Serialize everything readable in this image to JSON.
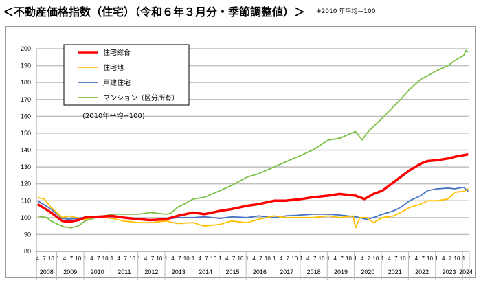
{
  "title": "＜不動産価格指数（住宅）（令和６年３月分・季節調整値）＞",
  "note": "※2010 年平均＝100",
  "chart_data": {
    "type": "line",
    "annotation": "(2010年平均=100)",
    "ylim": [
      80,
      200
    ],
    "yticks": [
      80,
      90,
      100,
      110,
      120,
      130,
      140,
      150,
      160,
      170,
      180,
      190,
      200
    ],
    "grid": true,
    "legend_position": "top-left",
    "x_range": [
      "2008-04",
      "2024-03"
    ],
    "month_tick_labels": [
      "4",
      "7",
      "10",
      "1"
    ],
    "year_labels": [
      "2008",
      "2009",
      "2010",
      "2011",
      "2012",
      "2013",
      "2014",
      "2015",
      "2016",
      "2017",
      "2018",
      "2019",
      "2020",
      "2021",
      "2022",
      "2023",
      "2024"
    ],
    "series": [
      {
        "name": "住宅総合",
        "color": "#ff0000",
        "points": [
          [
            "2008-04",
            108
          ],
          [
            "2008-10",
            103
          ],
          [
            "2009-03",
            98
          ],
          [
            "2009-06",
            97.5
          ],
          [
            "2009-10",
            98.5
          ],
          [
            "2010-01",
            100
          ],
          [
            "2011-01",
            101
          ],
          [
            "2011-06",
            100
          ],
          [
            "2012-01",
            99
          ],
          [
            "2012-06",
            98.5
          ],
          [
            "2013-01",
            99
          ],
          [
            "2013-06",
            101
          ],
          [
            "2014-01",
            103
          ],
          [
            "2014-06",
            102
          ],
          [
            "2015-01",
            104
          ],
          [
            "2015-06",
            105
          ],
          [
            "2016-01",
            107
          ],
          [
            "2016-06",
            108
          ],
          [
            "2017-01",
            110
          ],
          [
            "2017-06",
            110
          ],
          [
            "2018-01",
            111
          ],
          [
            "2018-06",
            112
          ],
          [
            "2019-01",
            113
          ],
          [
            "2019-06",
            114
          ],
          [
            "2020-01",
            113
          ],
          [
            "2020-05",
            111
          ],
          [
            "2020-09",
            114
          ],
          [
            "2021-01",
            116
          ],
          [
            "2021-06",
            121
          ],
          [
            "2021-09",
            124
          ],
          [
            "2022-01",
            128
          ],
          [
            "2022-06",
            132
          ],
          [
            "2022-09",
            133.5
          ],
          [
            "2023-01",
            134
          ],
          [
            "2023-06",
            135
          ],
          [
            "2023-09",
            136
          ],
          [
            "2024-01",
            137
          ],
          [
            "2024-03",
            137.5
          ]
        ]
      },
      {
        "name": "住宅地",
        "color": "#ffc000",
        "points": [
          [
            "2008-04",
            112
          ],
          [
            "2008-07",
            111
          ],
          [
            "2008-10",
            106
          ],
          [
            "2009-03",
            100
          ],
          [
            "2009-06",
            101
          ],
          [
            "2009-09",
            100
          ],
          [
            "2010-01",
            99
          ],
          [
            "2010-06",
            100.5
          ],
          [
            "2011-01",
            99.5
          ],
          [
            "2011-06",
            98
          ],
          [
            "2012-01",
            97
          ],
          [
            "2012-06",
            97
          ],
          [
            "2013-01",
            98
          ],
          [
            "2013-06",
            96.5
          ],
          [
            "2014-01",
            97
          ],
          [
            "2014-06",
            95
          ],
          [
            "2015-01",
            96
          ],
          [
            "2015-06",
            98
          ],
          [
            "2016-01",
            97
          ],
          [
            "2016-06",
            99
          ],
          [
            "2017-01",
            101
          ],
          [
            "2017-06",
            100
          ],
          [
            "2018-01",
            100
          ],
          [
            "2018-06",
            100
          ],
          [
            "2019-01",
            101
          ],
          [
            "2019-06",
            100
          ],
          [
            "2019-12",
            101
          ],
          [
            "2020-01",
            94
          ],
          [
            "2020-03",
            100
          ],
          [
            "2020-06",
            100
          ],
          [
            "2020-09",
            97
          ],
          [
            "2021-01",
            100
          ],
          [
            "2021-06",
            101
          ],
          [
            "2021-09",
            103
          ],
          [
            "2022-01",
            106
          ],
          [
            "2022-06",
            108
          ],
          [
            "2022-09",
            110
          ],
          [
            "2023-01",
            110
          ],
          [
            "2023-06",
            111
          ],
          [
            "2023-09",
            115
          ],
          [
            "2024-01",
            115.5
          ],
          [
            "2024-03",
            117
          ]
        ]
      },
      {
        "name": "戸建住宅",
        "color": "#4472c4",
        "points": [
          [
            "2008-04",
            110
          ],
          [
            "2008-10",
            105
          ],
          [
            "2009-03",
            99.5
          ],
          [
            "2009-06",
            99
          ],
          [
            "2010-01",
            100
          ],
          [
            "2011-01",
            100.5
          ],
          [
            "2011-06",
            100
          ],
          [
            "2012-01",
            99
          ],
          [
            "2012-06",
            98.5
          ],
          [
            "2013-01",
            99
          ],
          [
            "2013-06",
            100
          ],
          [
            "2014-01",
            100
          ],
          [
            "2014-06",
            100.5
          ],
          [
            "2015-01",
            99.5
          ],
          [
            "2015-06",
            100.5
          ],
          [
            "2016-01",
            100
          ],
          [
            "2016-06",
            101
          ],
          [
            "2017-01",
            100
          ],
          [
            "2017-06",
            101
          ],
          [
            "2018-01",
            101.5
          ],
          [
            "2018-06",
            102
          ],
          [
            "2019-01",
            102
          ],
          [
            "2019-06",
            101.5
          ],
          [
            "2020-01",
            100.5
          ],
          [
            "2020-06",
            99
          ],
          [
            "2020-09",
            100
          ],
          [
            "2021-01",
            102
          ],
          [
            "2021-06",
            104
          ],
          [
            "2021-09",
            106
          ],
          [
            "2022-01",
            110
          ],
          [
            "2022-06",
            113
          ],
          [
            "2022-09",
            116
          ],
          [
            "2023-01",
            117
          ],
          [
            "2023-06",
            117.5
          ],
          [
            "2023-09",
            117
          ],
          [
            "2024-01",
            118
          ],
          [
            "2024-03",
            115.5
          ]
        ]
      },
      {
        "name": "マンション（区分所有）",
        "color": "#7ac143",
        "points": [
          [
            "2008-04",
            101
          ],
          [
            "2008-08",
            100
          ],
          [
            "2008-10",
            98
          ],
          [
            "2009-01",
            96
          ],
          [
            "2009-04",
            94.5
          ],
          [
            "2009-07",
            94
          ],
          [
            "2009-10",
            95
          ],
          [
            "2010-01",
            98
          ],
          [
            "2010-06",
            100
          ],
          [
            "2011-01",
            102
          ],
          [
            "2011-06",
            102
          ],
          [
            "2012-01",
            102
          ],
          [
            "2012-06",
            103
          ],
          [
            "2013-01",
            102
          ],
          [
            "2013-03",
            102.5
          ],
          [
            "2013-06",
            106
          ],
          [
            "2013-09",
            108
          ],
          [
            "2014-01",
            111
          ],
          [
            "2014-06",
            112
          ],
          [
            "2015-01",
            116
          ],
          [
            "2015-06",
            119
          ],
          [
            "2016-01",
            124
          ],
          [
            "2016-06",
            126
          ],
          [
            "2017-01",
            130
          ],
          [
            "2017-06",
            133
          ],
          [
            "2018-01",
            137
          ],
          [
            "2018-06",
            140
          ],
          [
            "2019-01",
            146
          ],
          [
            "2019-06",
            147
          ],
          [
            "2020-01",
            151
          ],
          [
            "2020-04",
            146
          ],
          [
            "2020-06",
            150
          ],
          [
            "2020-09",
            154
          ],
          [
            "2021-01",
            159
          ],
          [
            "2021-06",
            166
          ],
          [
            "2021-09",
            170
          ],
          [
            "2022-01",
            176
          ],
          [
            "2022-06",
            182
          ],
          [
            "2022-09",
            184
          ],
          [
            "2023-01",
            187
          ],
          [
            "2023-06",
            190
          ],
          [
            "2023-09",
            193
          ],
          [
            "2024-01",
            196
          ],
          [
            "2024-02",
            199
          ],
          [
            "2024-03",
            198
          ]
        ]
      }
    ]
  }
}
